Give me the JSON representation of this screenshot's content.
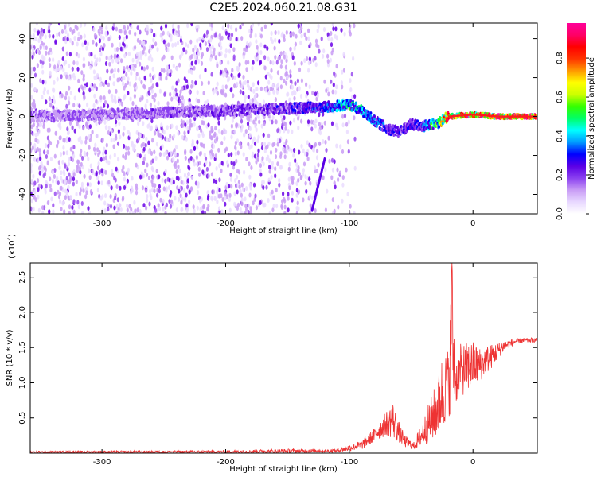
{
  "chart_data": [
    {
      "type": "heatmap",
      "title": "C2E5.2024.060.21.08.G31",
      "xlabel": "Height of straight line (km)",
      "ylabel": "Frequency (Hz)",
      "xlim": [
        -358,
        52
      ],
      "ylim": [
        -50,
        48
      ],
      "x_ticks": [
        -300,
        -200,
        -100,
        0
      ],
      "y_ticks": [
        -40,
        -20,
        0,
        20,
        40
      ],
      "colorbar": {
        "label": "Normalized spectral amplitude",
        "range": [
          0.0,
          0.98
        ],
        "ticks": [
          0.0,
          0.2,
          0.4,
          0.6,
          0.8
        ],
        "colors": [
          "#ffffff",
          "#e8d8ff",
          "#c89cf5",
          "#8a3ff0",
          "#5a00e6",
          "#0000ff",
          "#0099ff",
          "#00ffff",
          "#00ff66",
          "#33ff00",
          "#ccff00",
          "#ffff00",
          "#ff9900",
          "#ff3300",
          "#ff0000",
          "#ff0066",
          "#ff0099"
        ]
      },
      "ridge": [
        {
          "x": -358,
          "f": 0
        },
        {
          "x": -300,
          "f": 1
        },
        {
          "x": -250,
          "f": 2
        },
        {
          "x": -200,
          "f": 3
        },
        {
          "x": -150,
          "f": 4
        },
        {
          "x": -120,
          "f": 5
        },
        {
          "x": -100,
          "f": 6
        },
        {
          "x": -90,
          "f": 3
        },
        {
          "x": -80,
          "f": -2
        },
        {
          "x": -70,
          "f": -6
        },
        {
          "x": -60,
          "f": -8
        },
        {
          "x": -50,
          "f": -4
        },
        {
          "x": -40,
          "f": -5
        },
        {
          "x": -30,
          "f": -4
        },
        {
          "x": -20,
          "f": 0
        },
        {
          "x": 0,
          "f": 1
        },
        {
          "x": 20,
          "f": 0
        },
        {
          "x": 52,
          "f": 0
        }
      ],
      "ridge_amplitude": [
        {
          "x": -358,
          "a": 0.15
        },
        {
          "x": -200,
          "a": 0.2
        },
        {
          "x": -120,
          "a": 0.3
        },
        {
          "x": -100,
          "a": 0.45
        },
        {
          "x": -80,
          "a": 0.35
        },
        {
          "x": -60,
          "a": 0.25
        },
        {
          "x": -40,
          "a": 0.3
        },
        {
          "x": -20,
          "a": 0.8
        },
        {
          "x": 0,
          "a": 0.85
        },
        {
          "x": 52,
          "a": 0.9
        }
      ],
      "noise_extent_x": [
        -358,
        -105
      ]
    },
    {
      "type": "line",
      "xlabel": "Height of straight line (km)",
      "ylabel": "SNR (10 * v/v)",
      "y_multiplier": "(x10",
      "y_multiplier_exp": "4",
      "y_multiplier_close": ")",
      "xlim": [
        -358,
        52
      ],
      "ylim": [
        0,
        2.7
      ],
      "x_ticks": [
        -300,
        -200,
        -100,
        0
      ],
      "y_ticks": [
        0.5,
        1.0,
        1.5,
        2.0,
        2.5
      ],
      "series": [
        {
          "color": "#ee3333",
          "envelope": [
            {
              "x": -358,
              "lo": 0.0,
              "hi": 0.03
            },
            {
              "x": -200,
              "lo": 0.0,
              "hi": 0.04
            },
            {
              "x": -150,
              "lo": 0.0,
              "hi": 0.06
            },
            {
              "x": -110,
              "lo": 0.01,
              "hi": 0.06
            },
            {
              "x": -90,
              "lo": 0.05,
              "hi": 0.18
            },
            {
              "x": -80,
              "lo": 0.15,
              "hi": 0.35
            },
            {
              "x": -70,
              "lo": 0.25,
              "hi": 0.6
            },
            {
              "x": -65,
              "lo": 0.2,
              "hi": 0.75
            },
            {
              "x": -60,
              "lo": 0.15,
              "hi": 0.45
            },
            {
              "x": -55,
              "lo": 0.08,
              "hi": 0.25
            },
            {
              "x": -48,
              "lo": 0.05,
              "hi": 0.15
            },
            {
              "x": -40,
              "lo": 0.1,
              "hi": 0.5
            },
            {
              "x": -30,
              "lo": 0.2,
              "hi": 1.0
            },
            {
              "x": -25,
              "lo": 0.3,
              "hi": 1.4
            },
            {
              "x": -20,
              "lo": 0.5,
              "hi": 1.5
            },
            {
              "x": -17,
              "lo": 0.6,
              "hi": 2.7
            },
            {
              "x": -14,
              "lo": 0.7,
              "hi": 1.3
            },
            {
              "x": -10,
              "lo": 0.8,
              "hi": 1.55
            },
            {
              "x": 0,
              "lo": 0.9,
              "hi": 1.6
            },
            {
              "x": 5,
              "lo": 1.0,
              "hi": 1.5
            },
            {
              "x": 15,
              "lo": 1.2,
              "hi": 1.55
            },
            {
              "x": 25,
              "lo": 1.45,
              "hi": 1.6
            },
            {
              "x": 35,
              "lo": 1.55,
              "hi": 1.63
            },
            {
              "x": 52,
              "lo": 1.58,
              "hi": 1.64
            }
          ]
        }
      ]
    }
  ]
}
